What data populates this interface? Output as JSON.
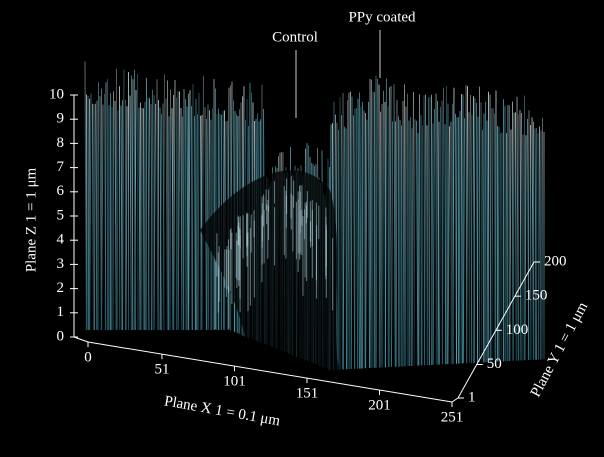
{
  "chart_data": {
    "type": "surface",
    "annotations": [
      "Control",
      "PPy coated"
    ],
    "xlabel": "Plane X 1 = 0.1 μm",
    "ylabel": "Plane Y 1 = 1 μm",
    "zlabel": "Plane Z 1 = 1 μm",
    "xlim": [
      0,
      251
    ],
    "xticks": [
      0,
      51,
      101,
      151,
      201,
      251
    ],
    "ylim": [
      1,
      200
    ],
    "yticks": [
      1,
      50,
      100,
      150,
      200
    ],
    "zlim": [
      0,
      10
    ],
    "zticks": [
      0,
      1,
      2,
      3,
      4,
      5,
      6,
      7,
      8,
      9,
      10
    ],
    "color": "#5fb8cc"
  }
}
